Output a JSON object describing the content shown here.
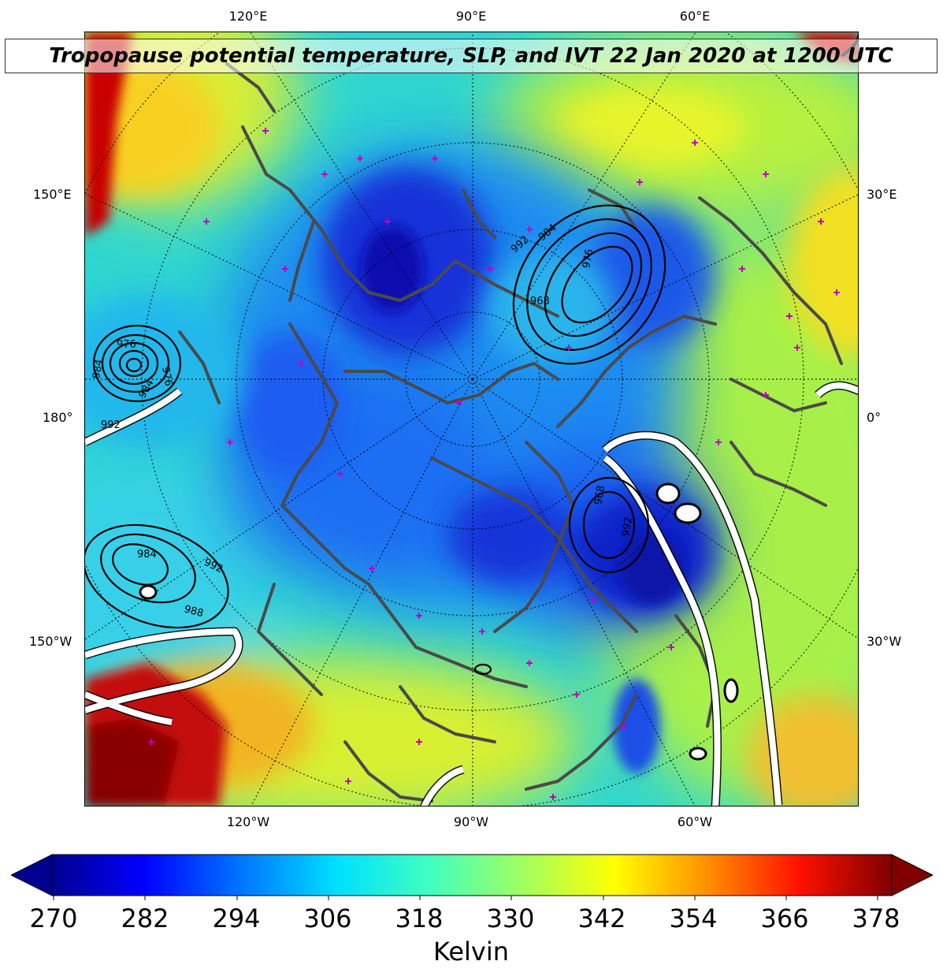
{
  "title": "Tropopause potential temperature, SLP, and IVT 22 Jan 2020 at 1200 UTC",
  "map": {
    "top_longitude_labels": [
      "120°E",
      "90°E",
      "60°E"
    ],
    "bottom_longitude_labels": [
      "120°W",
      "90°W",
      "60°W"
    ],
    "left_labels": [
      "150°E",
      "180°",
      "150°W"
    ],
    "right_labels": [
      "30°E",
      "0°",
      "30°W"
    ],
    "slp_contour_labels": [
      "992",
      "984",
      "976",
      "976",
      "968",
      "992",
      "984",
      "976",
      "968",
      "984",
      "992",
      "984",
      "988",
      "992"
    ],
    "field_colormap": "jet",
    "overlays": [
      "sea-level-pressure-contours",
      "ivt-contours-white",
      "coastlines",
      "magenta-station-markers"
    ]
  },
  "colorbar": {
    "ticks": [
      "270",
      "282",
      "294",
      "306",
      "318",
      "330",
      "342",
      "354",
      "366",
      "378"
    ],
    "unit_label": "Kelvin",
    "min": 270,
    "max": 378,
    "extend": "both"
  }
}
